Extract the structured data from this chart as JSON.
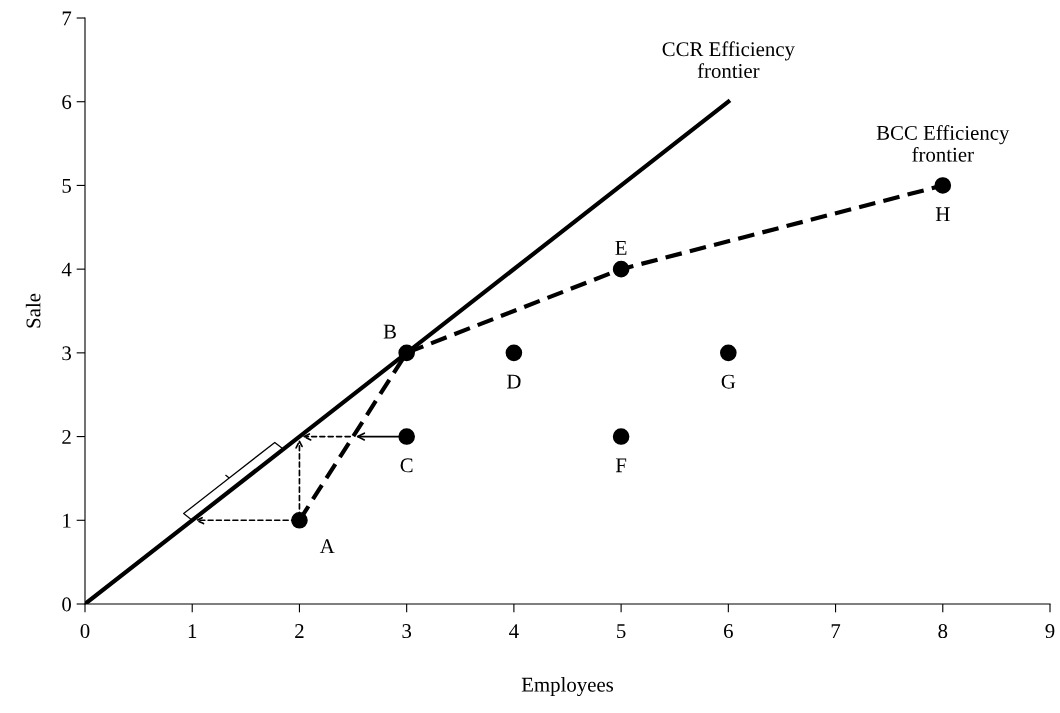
{
  "chart_data": {
    "type": "line",
    "xlabel": "Employees",
    "ylabel": "Sale",
    "xlim": [
      0,
      9
    ],
    "ylim": [
      0,
      7
    ],
    "xticks": [
      0,
      1,
      2,
      3,
      4,
      5,
      6,
      7,
      8,
      9
    ],
    "yticks": [
      0,
      1,
      2,
      3,
      4,
      5,
      6,
      7
    ],
    "grid": false,
    "legend": false,
    "series": [
      {
        "name": "CCR Efficiency\nfrontier",
        "color": "#000000",
        "line_style": "solid",
        "marker": "none",
        "x": [
          0,
          6
        ],
        "values": [
          0,
          6
        ]
      },
      {
        "name": "BCC Efficiency\nfrontier",
        "color": "#000000",
        "line_style": "dashed",
        "marker": "none",
        "x": [
          2,
          3,
          5,
          8
        ],
        "values": [
          1,
          3,
          4,
          5
        ]
      },
      {
        "type": "scatter",
        "color": "#000000",
        "marker": "circle",
        "x": [
          2,
          3,
          3,
          4,
          5,
          5,
          6,
          8
        ],
        "values": [
          1,
          3,
          2,
          3,
          4,
          2,
          3,
          5
        ]
      }
    ],
    "annotations": [
      {
        "text": "A",
        "x": 2,
        "y": 1
      },
      {
        "text": "B",
        "x": 3,
        "y": 3
      },
      {
        "text": "C",
        "x": 3,
        "y": 2
      },
      {
        "text": "D",
        "x": 4,
        "y": 3
      },
      {
        "text": "E",
        "x": 5,
        "y": 4
      },
      {
        "text": "F",
        "x": 5,
        "y": 2
      },
      {
        "text": "G",
        "x": 6,
        "y": 3
      },
      {
        "text": "H",
        "x": 8,
        "y": 5
      }
    ]
  }
}
